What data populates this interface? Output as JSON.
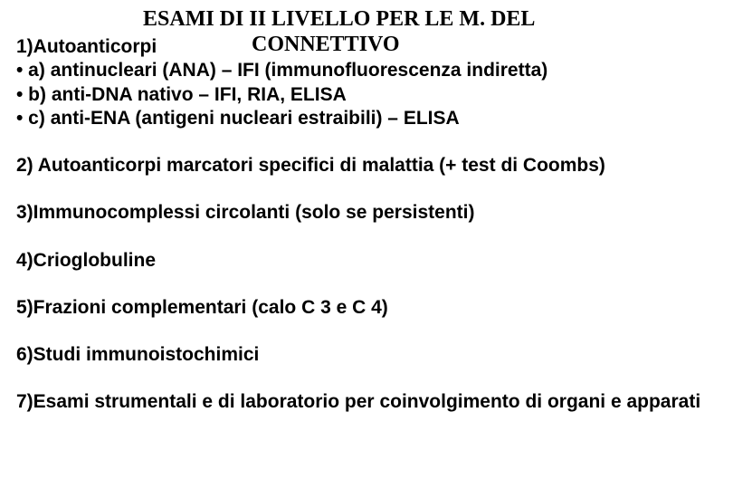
{
  "title": {
    "line1": "ESAMI DI II LIVELLO PER LE M. DEL",
    "line2": "CONNETTIVO",
    "font_family": "Times New Roman",
    "font_weight": "bold",
    "font_size_pt": 18,
    "color": "#000000"
  },
  "body": {
    "font_family": "Arial",
    "font_weight": "bold",
    "font_size_pt": 16,
    "color": "#000000",
    "background_color": "#ffffff"
  },
  "items": {
    "item1_label": "1)Autoanticorpi",
    "item1_sub_a": "• a) antinucleari (ANA) – IFI (immunofluorescenza indiretta)",
    "item1_sub_b": "• b) anti-DNA nativo – IFI, RIA, ELISA",
    "item1_sub_c": "• c) anti-ENA (antigeni nucleari estraibili) – ELISA",
    "item2": "2) Autoanticorpi marcatori specifici di malattia (+ test di Coombs)",
    "item3": "3)Immunocomplessi circolanti (solo se persistenti)",
    "item4": "4)Crioglobuline",
    "item5": "5)Frazioni complementari (calo C 3 e C 4)",
    "item6": "6)Studi immunoistochimici",
    "item7": "7)Esami strumentali e di laboratorio per coinvolgimento di organi e apparati"
  }
}
